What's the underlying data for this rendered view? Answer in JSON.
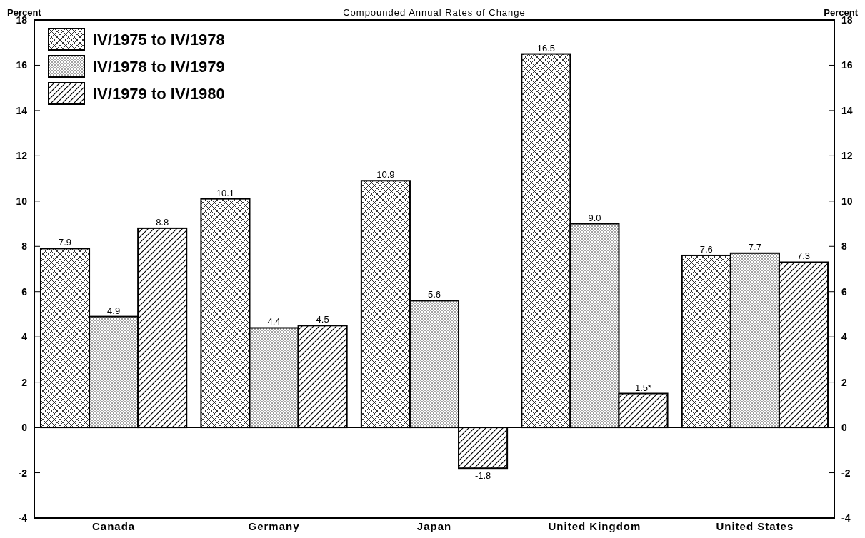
{
  "chart_data": {
    "type": "bar",
    "title": "Compounded Annual Rates of Change",
    "ylabel": "Percent",
    "y2label": "Percent",
    "categories": [
      "Canada",
      "Germany",
      "Japan",
      "United Kingdom",
      "United States"
    ],
    "series": [
      {
        "name": "IV/1975 to IV/1978",
        "color": "#000000",
        "values": [
          7.9,
          10.1,
          10.9,
          16.5,
          7.6
        ],
        "value_labels": [
          "7.9",
          "10.1",
          "10.9",
          "16.5",
          "7.6"
        ]
      },
      {
        "name": "IV/1978 to IV/1979",
        "color": "#000000",
        "values": [
          4.9,
          4.4,
          5.6,
          9.0,
          7.7
        ],
        "value_labels": [
          "4.9",
          "4.4",
          "5.6",
          "9.0",
          "7.7"
        ]
      },
      {
        "name": "IV/1979 to IV/1980",
        "color": "#000000",
        "values": [
          8.8,
          4.5,
          -1.8,
          1.5,
          7.3
        ],
        "value_labels": [
          "8.8",
          "4.5",
          "-1.8",
          "1.5*",
          "7.3"
        ]
      }
    ],
    "ylim": [
      -4,
      18
    ],
    "yticks": [
      -4,
      -2,
      0,
      2,
      4,
      6,
      8,
      10,
      12,
      14,
      16,
      18
    ],
    "y2lim": [
      -4,
      18
    ],
    "y2ticks": [
      -4,
      -2,
      0,
      2,
      4,
      6,
      8,
      10,
      12,
      14,
      16,
      18
    ],
    "legend": "top left"
  }
}
